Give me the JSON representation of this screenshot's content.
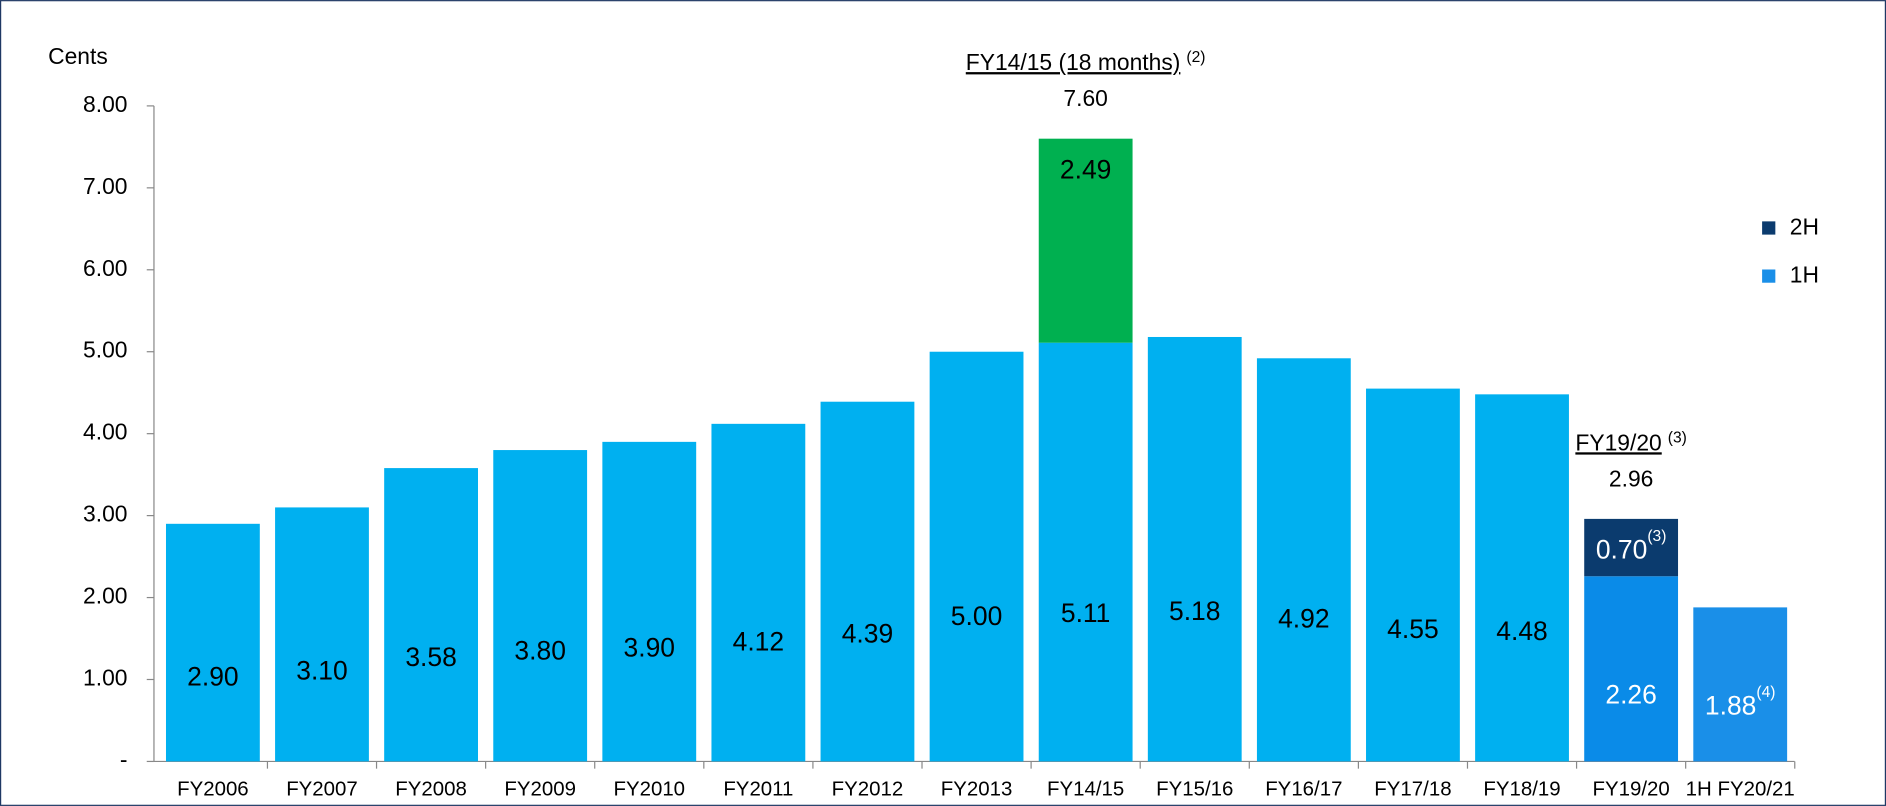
{
  "chart_data": {
    "type": "stacked_bar",
    "y_label": "Cents",
    "categories": [
      "FY2006",
      "FY2007",
      "FY2008",
      "FY2009",
      "FY2010",
      "FY2011",
      "FY2012",
      "FY2013",
      "FY14/15",
      "FY15/16",
      "FY16/17",
      "FY17/18",
      "FY18/19",
      "FY19/20",
      "1H FY20/21"
    ],
    "series": [
      {
        "name": "1H",
        "color": "#1a8fe8",
        "colors": [
          "#00b0f0",
          "#00b0f0",
          "#00b0f0",
          "#00b0f0",
          "#00b0f0",
          "#00b0f0",
          "#00b0f0",
          "#00b0f0",
          "#00b0f0",
          "#00b0f0",
          "#00b0f0",
          "#00b0f0",
          "#00b0f0",
          "#0a8be8",
          "#1a8fe8"
        ],
        "values": [
          2.9,
          3.1,
          3.58,
          3.8,
          3.9,
          4.12,
          4.39,
          5.0,
          5.11,
          5.18,
          4.92,
          4.55,
          4.48,
          2.26,
          1.88
        ],
        "value_labels": [
          "2.90",
          "3.10",
          "3.58",
          "3.80",
          "3.90",
          "4.12",
          "4.39",
          "5.00",
          "5.11",
          "5.18",
          "4.92",
          "4.55",
          "4.48",
          "2.26",
          "1.88"
        ],
        "label_colors": [
          "#000",
          "#000",
          "#000",
          "#000",
          "#000",
          "#000",
          "#000",
          "#000",
          "#000",
          "#000",
          "#000",
          "#000",
          "#000",
          "#fff",
          "#fff"
        ],
        "notes": [
          null,
          null,
          null,
          null,
          null,
          null,
          null,
          null,
          null,
          null,
          null,
          null,
          null,
          null,
          "(4)"
        ]
      },
      {
        "name": "2H",
        "color": "#0b3b6e",
        "colors": [
          null,
          null,
          null,
          null,
          null,
          null,
          null,
          null,
          "#00b050",
          null,
          null,
          null,
          null,
          "#0b3b6e",
          null
        ],
        "values": [
          null,
          null,
          null,
          null,
          null,
          null,
          null,
          null,
          2.49,
          null,
          null,
          null,
          null,
          0.7,
          null
        ],
        "value_labels": [
          null,
          null,
          null,
          null,
          null,
          null,
          null,
          null,
          "2.49",
          null,
          null,
          null,
          null,
          "0.70",
          null
        ],
        "label_colors": [
          null,
          null,
          null,
          null,
          null,
          null,
          null,
          null,
          "#000",
          null,
          null,
          null,
          null,
          "#fff",
          null
        ],
        "notes": [
          null,
          null,
          null,
          null,
          null,
          null,
          null,
          null,
          null,
          null,
          null,
          null,
          null,
          "(3)",
          null
        ]
      }
    ],
    "annotations": [
      {
        "category": "FY14/15",
        "label": "FY14/15 (18 months)",
        "note": "(2)",
        "value": 7.6,
        "value_label": "7.60"
      },
      {
        "category": "FY19/20",
        "label": "FY19/20",
        "note": "(3)",
        "value": 2.96,
        "value_label": "2.96"
      }
    ],
    "ylim": [
      0,
      8
    ],
    "yticks": [
      {
        "value": 0,
        "label": "-"
      },
      {
        "value": 1,
        "label": "1.00"
      },
      {
        "value": 2,
        "label": "2.00"
      },
      {
        "value": 3,
        "label": "3.00"
      },
      {
        "value": 4,
        "label": "4.00"
      },
      {
        "value": 5,
        "label": "5.00"
      },
      {
        "value": 6,
        "label": "6.00"
      },
      {
        "value": 7,
        "label": "7.00"
      },
      {
        "value": 8,
        "label": "8.00"
      }
    ],
    "legend": "right",
    "grid": false
  }
}
